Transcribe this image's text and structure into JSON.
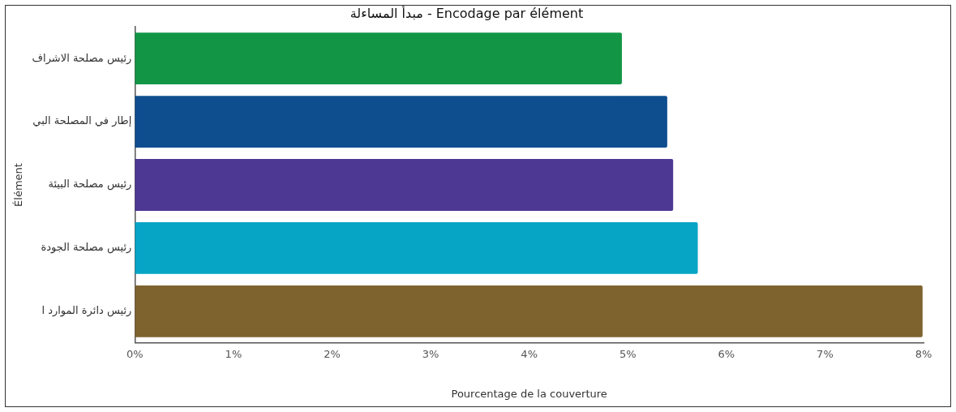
{
  "chart_data": {
    "type": "bar",
    "orientation": "horizontal",
    "title": "مبدأ المساءلة - Encodage par élément",
    "xlabel": "Pourcentage de la couverture",
    "ylabel": "Élément",
    "categories": [
      "رئيس مصلحة الاشراف",
      "إطار في المصلحة البي",
      "رئيس مصلحة البيئة",
      "رئيس مصلحة الجودة",
      "رئيس دائرة الموارد ا"
    ],
    "values": [
      4.94,
      5.4,
      5.46,
      5.71,
      7.99
    ],
    "colors": [
      "#129646",
      "#0e4e8f",
      "#4d3893",
      "#06a5c5",
      "#7e632f"
    ],
    "xlim": [
      0,
      8
    ],
    "xticks": [
      {
        "value": 0,
        "label": "0%"
      },
      {
        "value": 1,
        "label": "1%"
      },
      {
        "value": 2,
        "label": "2%"
      },
      {
        "value": 3,
        "label": "3%"
      },
      {
        "value": 4,
        "label": "4%"
      },
      {
        "value": 5,
        "label": "5%"
      },
      {
        "value": 6,
        "label": "6%"
      },
      {
        "value": 7,
        "label": "7%"
      },
      {
        "value": 8,
        "label": "8%"
      }
    ],
    "grid": false,
    "legend": false
  }
}
